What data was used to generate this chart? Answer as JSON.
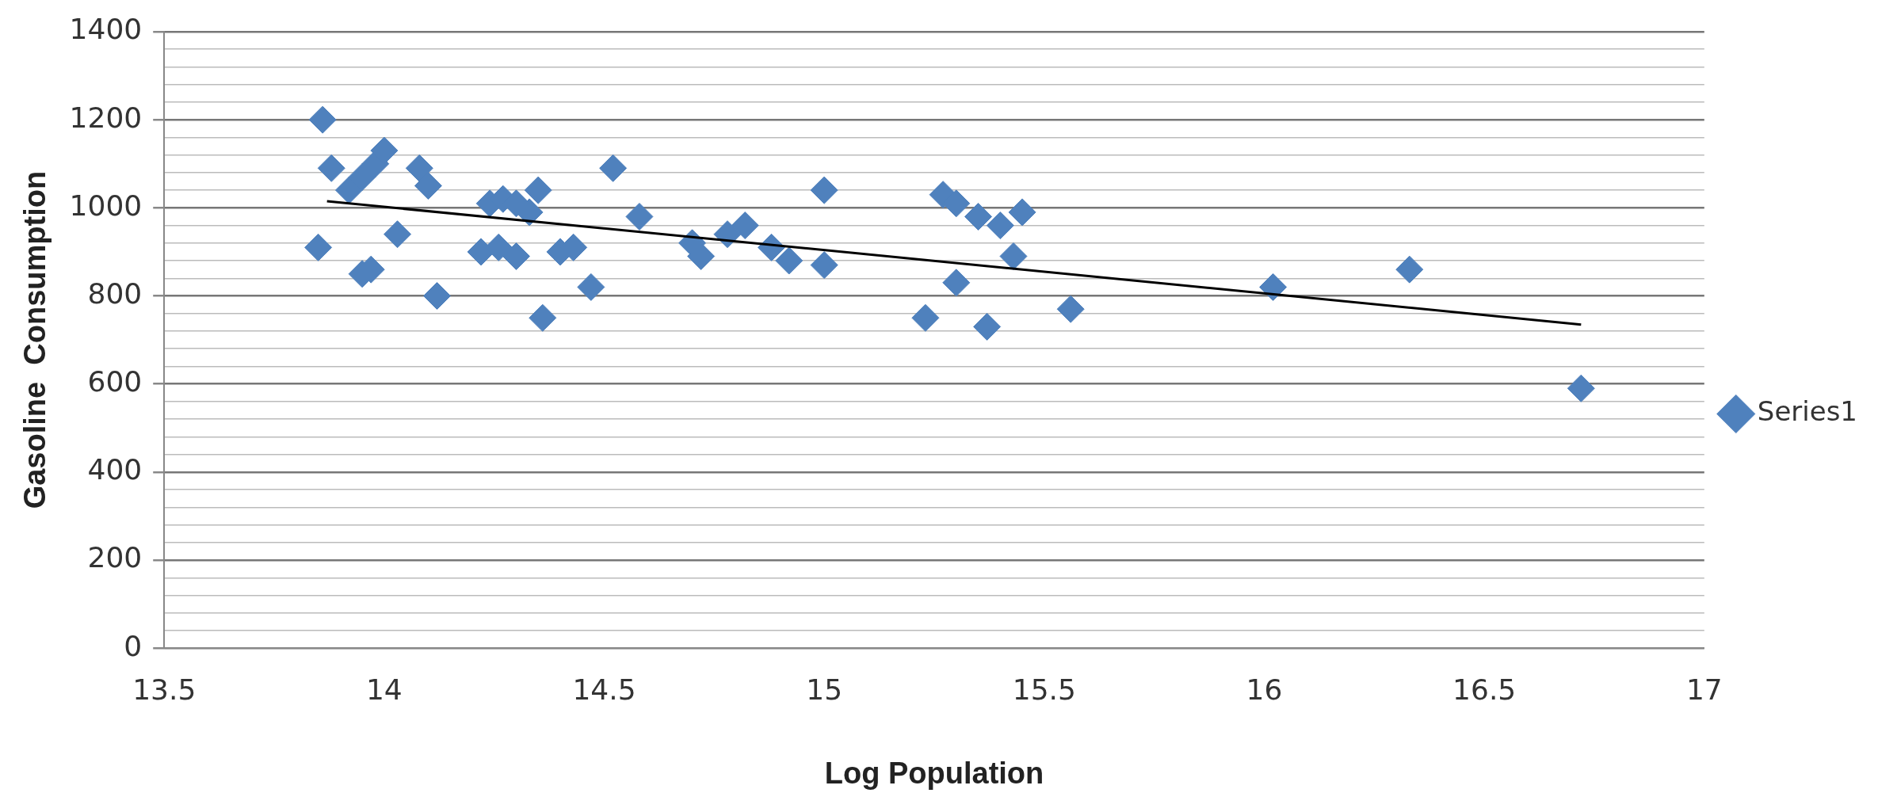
{
  "chart_data": {
    "type": "scatter",
    "xlabel": "Log Population",
    "ylabel": "Gasoline  Consumption",
    "xlim": [
      13.5,
      17
    ],
    "xticks": [
      13.5,
      14,
      14.5,
      15,
      15.5,
      16,
      16.5,
      17
    ],
    "ylim": [
      0,
      1400
    ],
    "yticks": [
      0,
      {
        "value": 40,
        "label": null
      },
      {
        "value": 80,
        "label": null
      },
      {
        "value": 120,
        "label": null
      },
      {
        "value": 160,
        "label": null
      },
      200,
      {
        "value": 240,
        "label": null
      },
      {
        "value": 280,
        "label": null
      },
      {
        "value": 320,
        "label": null
      },
      {
        "value": 360,
        "label": null
      },
      400,
      {
        "value": 440,
        "label": null
      },
      {
        "value": 480,
        "label": null
      },
      {
        "value": 520,
        "label": null
      },
      {
        "value": 560,
        "label": null
      },
      600,
      {
        "value": 640,
        "label": null
      },
      {
        "value": 680,
        "label": null
      },
      {
        "value": 720,
        "label": null
      },
      {
        "value": 760,
        "label": null
      },
      800,
      {
        "value": 840,
        "label": null
      },
      {
        "value": 880,
        "label": null
      },
      {
        "value": 920,
        "label": null
      },
      {
        "value": 960,
        "label": null
      },
      1000,
      {
        "value": 1040,
        "label": null
      },
      {
        "value": 1080,
        "label": null
      },
      {
        "value": 1120,
        "label": null
      },
      {
        "value": 1160,
        "label": null
      },
      1200,
      {
        "value": 1240,
        "label": null
      },
      {
        "value": 1280,
        "label": null
      },
      {
        "value": 1320,
        "label": null
      },
      {
        "value": 1360,
        "label": null
      },
      1400
    ],
    "grid": "y",
    "legend": "right",
    "series": [
      {
        "name": "Series1",
        "marker": "diamond",
        "color": "#4f81bd",
        "x": [
          13.86,
          13.85,
          13.88,
          13.92,
          13.95,
          13.98,
          14.0,
          13.95,
          13.97,
          14.03,
          14.08,
          14.1,
          14.12,
          14.22,
          14.24,
          14.27,
          14.3,
          14.3,
          14.26,
          14.33,
          14.35,
          14.36,
          14.4,
          14.43,
          14.47,
          14.52,
          14.58,
          14.7,
          14.72,
          14.78,
          14.82,
          14.88,
          14.92,
          15.0,
          15.0,
          15.23,
          15.27,
          15.3,
          15.3,
          15.35,
          15.37,
          15.4,
          15.43,
          15.45,
          15.56,
          16.02,
          16.33,
          16.72
        ],
        "values": [
          1200,
          910,
          1090,
          1040,
          1070,
          1100,
          1130,
          850,
          860,
          940,
          1090,
          1050,
          800,
          900,
          1010,
          1020,
          1010,
          890,
          910,
          990,
          1040,
          750,
          900,
          910,
          820,
          1090,
          980,
          920,
          890,
          940,
          960,
          910,
          880,
          870,
          1040,
          750,
          1030,
          1010,
          830,
          980,
          730,
          960,
          890,
          990,
          770,
          820,
          860,
          590
        ]
      },
      {
        "type": "line",
        "marker": "none",
        "color": "#000000",
        "x": [
          13.87,
          16.72
        ],
        "values": [
          1015,
          735
        ]
      }
    ]
  }
}
